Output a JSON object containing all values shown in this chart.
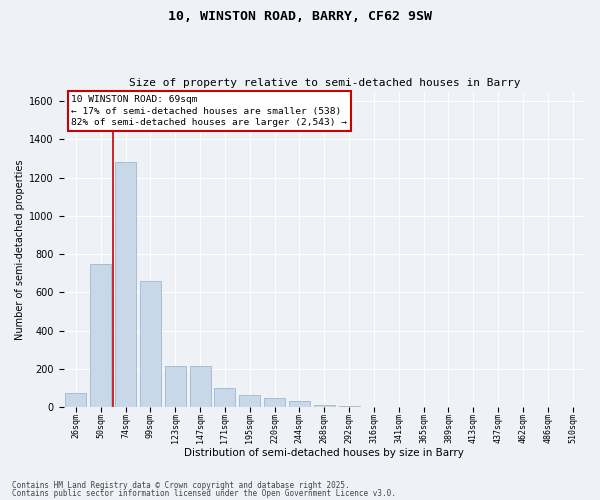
{
  "title1": "10, WINSTON ROAD, BARRY, CF62 9SW",
  "title2": "Size of property relative to semi-detached houses in Barry",
  "xlabel": "Distribution of semi-detached houses by size in Barry",
  "ylabel": "Number of semi-detached properties",
  "categories": [
    "26sqm",
    "50sqm",
    "74sqm",
    "99sqm",
    "123sqm",
    "147sqm",
    "171sqm",
    "195sqm",
    "220sqm",
    "244sqm",
    "268sqm",
    "292sqm",
    "316sqm",
    "341sqm",
    "365sqm",
    "389sqm",
    "413sqm",
    "437sqm",
    "462sqm",
    "486sqm",
    "510sqm"
  ],
  "values": [
    75,
    750,
    1280,
    660,
    215,
    215,
    100,
    65,
    45,
    30,
    10,
    5,
    3,
    2,
    1,
    1,
    0,
    0,
    0,
    0,
    0
  ],
  "bar_color": "#c8d8e8",
  "bar_edge_color": "#a0b8cc",
  "red_line_x": 1.5,
  "annotation_text": "10 WINSTON ROAD: 69sqm\n← 17% of semi-detached houses are smaller (538)\n82% of semi-detached houses are larger (2,543) →",
  "annotation_box_color": "#ffffff",
  "annotation_border_color": "#cc0000",
  "ylim": [
    0,
    1650
  ],
  "yticks": [
    0,
    200,
    400,
    600,
    800,
    1000,
    1200,
    1400,
    1600
  ],
  "footer1": "Contains HM Land Registry data © Crown copyright and database right 2025.",
  "footer2": "Contains public sector information licensed under the Open Government Licence v3.0.",
  "bg_color": "#eef2f7",
  "grid_color": "#ffffff"
}
